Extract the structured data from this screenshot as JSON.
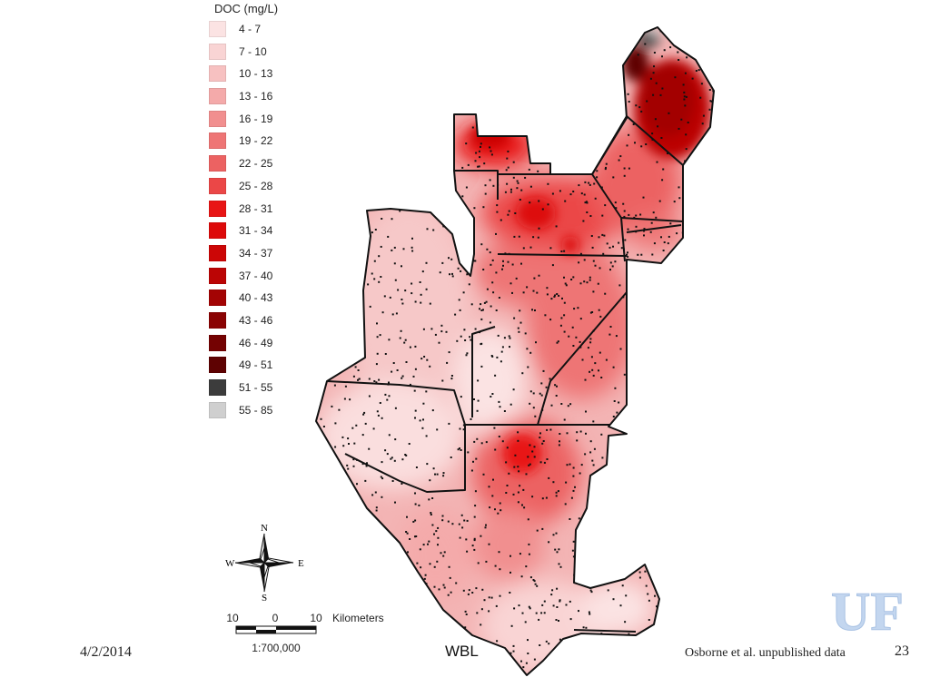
{
  "legend": {
    "title": "DOC (mg/L)",
    "classes": [
      {
        "label": "4 - 7",
        "color": "#fbe3e3"
      },
      {
        "label": "7 - 10",
        "color": "#f9d4d4"
      },
      {
        "label": "10 - 13",
        "color": "#f7c1c1"
      },
      {
        "label": "13 - 16",
        "color": "#f4aaaa"
      },
      {
        "label": "16 - 19",
        "color": "#f18f8f"
      },
      {
        "label": "19 - 22",
        "color": "#ee7575"
      },
      {
        "label": "22 - 25",
        "color": "#ec6262"
      },
      {
        "label": "25 - 28",
        "color": "#eb4747"
      },
      {
        "label": "28 - 31",
        "color": "#e81515"
      },
      {
        "label": "31 - 34",
        "color": "#dd0a0a"
      },
      {
        "label": "34 - 37",
        "color": "#cc0606"
      },
      {
        "label": "37 - 40",
        "color": "#bb0505"
      },
      {
        "label": "40 - 43",
        "color": "#a30404"
      },
      {
        "label": "43 - 46",
        "color": "#8a0303"
      },
      {
        "label": "46 - 49",
        "color": "#740202"
      },
      {
        "label": "49 - 51",
        "color": "#5e0202"
      },
      {
        "label": "51 - 55",
        "color": "#3c3c3c"
      },
      {
        "label": "55 - 85",
        "color": "#cfcfcf"
      }
    ]
  },
  "compass": {
    "n": "N",
    "s": "S",
    "e": "E",
    "w": "W"
  },
  "scale": {
    "left_label": "10",
    "mid_label": "0",
    "right_label": "10",
    "unit": "Kilometers",
    "ratio": "1:700,000"
  },
  "footer": {
    "date": "4/2/2014",
    "center": "WBL",
    "source": "Osborne et al. unpublished data",
    "page": "23"
  },
  "logo": {
    "text": "UF",
    "color": "#c3d6ef"
  }
}
